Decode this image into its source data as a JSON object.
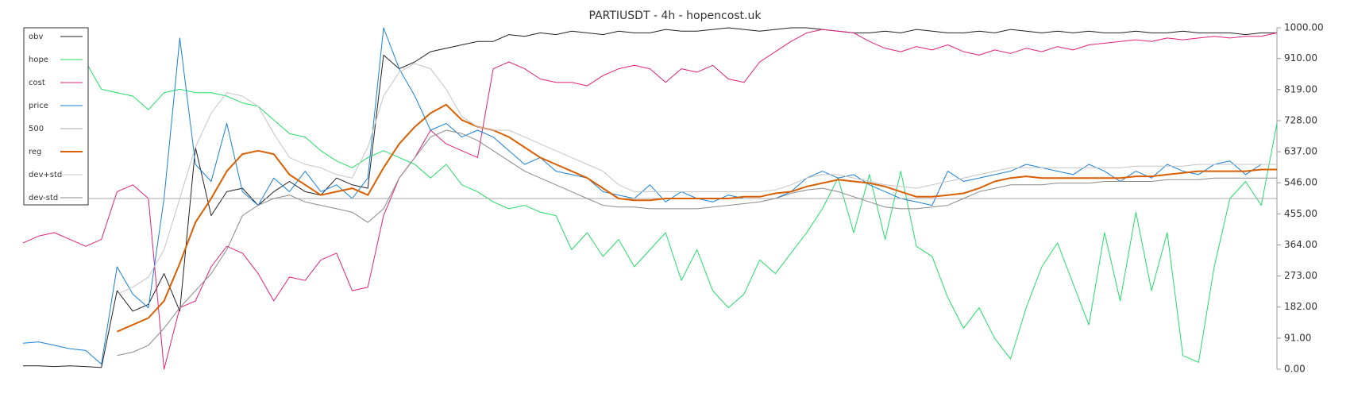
{
  "chart_data": {
    "type": "line",
    "title": "PARTIUSDT - 4h - hopencost.uk",
    "ylim": [
      0,
      1000
    ],
    "yticks": [
      {
        "value": 0,
        "label": "0.00"
      },
      {
        "value": 91,
        "label": "91.00"
      },
      {
        "value": 182,
        "label": "182.00"
      },
      {
        "value": 273,
        "label": "273.00"
      },
      {
        "value": 364,
        "label": "364.00"
      },
      {
        "value": 455,
        "label": "455.00"
      },
      {
        "value": 546,
        "label": "546.00"
      },
      {
        "value": 637,
        "label": "637.00"
      },
      {
        "value": 728,
        "label": "728.00"
      },
      {
        "value": 819,
        "label": "819.00"
      },
      {
        "value": 910,
        "label": "910.00"
      },
      {
        "value": 1000,
        "label": "1000.00"
      }
    ],
    "legend": "top-left",
    "series": [
      {
        "name": "obv",
        "color": "#222222",
        "values": [
          10,
          10,
          8,
          10,
          8,
          5,
          230,
          170,
          190,
          280,
          170,
          650,
          450,
          520,
          530,
          480,
          520,
          550,
          520,
          510,
          560,
          540,
          530,
          920,
          880,
          900,
          930,
          940,
          950,
          960,
          960,
          980,
          975,
          985,
          980,
          990,
          985,
          980,
          990,
          985,
          985,
          995,
          990,
          990,
          995,
          1000,
          995,
          990,
          995,
          1000,
          1000,
          995,
          990,
          985,
          985,
          990,
          985,
          995,
          990,
          985,
          985,
          990,
          985,
          995,
          990,
          985,
          990,
          985,
          990,
          985,
          985,
          990,
          985,
          985,
          990,
          985,
          985,
          985,
          980,
          985,
          985
        ]
      },
      {
        "name": "hope",
        "color": "#22dd66",
        "values": [
          null,
          null,
          null,
          null,
          900,
          820,
          810,
          800,
          760,
          810,
          820,
          810,
          810,
          800,
          780,
          770,
          730,
          690,
          680,
          640,
          610,
          590,
          620,
          640,
          620,
          600,
          560,
          600,
          540,
          520,
          490,
          470,
          480,
          460,
          450,
          350,
          400,
          330,
          380,
          300,
          350,
          400,
          260,
          350,
          230,
          180,
          220,
          320,
          280,
          340,
          400,
          470,
          560,
          400,
          570,
          380,
          580,
          360,
          330,
          210,
          120,
          180,
          90,
          30,
          180,
          300,
          370,
          250,
          130,
          400,
          200,
          460,
          230,
          400,
          40,
          20,
          300,
          500,
          550,
          480,
          720
        ]
      },
      {
        "name": "cost",
        "color": "#e0207a",
        "values": [
          370,
          390,
          400,
          380,
          360,
          380,
          520,
          540,
          500,
          0,
          180,
          200,
          300,
          360,
          340,
          280,
          200,
          270,
          260,
          320,
          340,
          230,
          240,
          450,
          560,
          620,
          700,
          660,
          640,
          620,
          880,
          900,
          880,
          850,
          840,
          840,
          830,
          860,
          880,
          890,
          880,
          840,
          880,
          870,
          890,
          850,
          840,
          900,
          930,
          960,
          985,
          995,
          990,
          985,
          960,
          940,
          930,
          945,
          935,
          950,
          930,
          920,
          935,
          925,
          940,
          930,
          945,
          935,
          950,
          955,
          960,
          965,
          960,
          970,
          965,
          970,
          975,
          970,
          975,
          975,
          985
        ]
      },
      {
        "name": "price",
        "color": "#1a7fd4",
        "values": [
          76,
          80,
          70,
          60,
          55,
          15,
          300,
          220,
          180,
          500,
          970,
          600,
          550,
          720,
          520,
          480,
          560,
          520,
          580,
          520,
          540,
          500,
          560,
          1000,
          880,
          800,
          700,
          720,
          680,
          700,
          680,
          640,
          600,
          620,
          580,
          570,
          560,
          520,
          510,
          500,
          540,
          490,
          520,
          500,
          490,
          510,
          500,
          500,
          500,
          520,
          560,
          580,
          560,
          570,
          540,
          520,
          500,
          490,
          480,
          580,
          550,
          560,
          570,
          580,
          600,
          590,
          580,
          570,
          600,
          580,
          550,
          580,
          560,
          600,
          580,
          570,
          600,
          610,
          570,
          600,
          600
        ]
      },
      {
        "name": "500",
        "color": "#aaaaaa",
        "values": [
          500,
          500,
          500,
          500,
          500,
          500,
          500,
          500,
          500,
          500,
          500,
          500,
          500,
          500,
          500,
          500,
          500,
          500,
          500,
          500,
          500,
          500,
          500,
          500,
          500,
          500,
          500,
          500,
          500,
          500,
          500,
          500,
          500,
          500,
          500,
          500,
          500,
          500,
          500,
          500,
          500,
          500,
          500,
          500,
          500,
          500,
          500,
          500,
          500,
          500,
          500,
          500,
          500,
          500,
          500,
          500,
          500,
          500,
          500,
          500,
          500,
          500,
          500,
          500,
          500,
          500,
          500,
          500,
          500,
          500,
          500,
          500,
          500,
          500,
          500,
          500,
          500,
          500,
          500,
          500,
          500
        ]
      },
      {
        "name": "reg",
        "color": "#d95f02",
        "width": 2,
        "values": [
          null,
          null,
          null,
          null,
          null,
          null,
          110,
          130,
          150,
          200,
          310,
          430,
          500,
          580,
          630,
          640,
          630,
          570,
          540,
          510,
          520,
          530,
          510,
          590,
          660,
          710,
          750,
          775,
          730,
          710,
          700,
          680,
          650,
          620,
          600,
          580,
          560,
          530,
          500,
          495,
          495,
          500,
          500,
          500,
          500,
          500,
          505,
          505,
          515,
          520,
          535,
          545,
          555,
          550,
          545,
          535,
          520,
          505,
          505,
          510,
          515,
          530,
          550,
          560,
          565,
          560,
          560,
          560,
          560,
          560,
          560,
          565,
          565,
          570,
          575,
          580,
          580,
          580,
          580,
          585,
          585
        ]
      },
      {
        "name": "dev+std",
        "color": "#c4c4c4",
        "values": [
          null,
          null,
          null,
          null,
          null,
          null,
          220,
          240,
          270,
          350,
          500,
          650,
          750,
          810,
          800,
          770,
          690,
          620,
          600,
          590,
          570,
          560,
          650,
          800,
          870,
          895,
          880,
          820,
          740,
          710,
          700,
          700,
          680,
          660,
          640,
          620,
          600,
          580,
          540,
          520,
          520,
          520,
          520,
          520,
          520,
          520,
          520,
          520,
          525,
          540,
          560,
          570,
          570,
          560,
          550,
          540,
          535,
          530,
          540,
          550,
          560,
          570,
          580,
          590,
          590,
          590,
          590,
          590,
          590,
          590,
          590,
          595,
          595,
          595,
          595,
          600,
          600,
          600,
          600,
          600,
          600
        ]
      },
      {
        "name": "dev-std",
        "color": "#8a8a8a",
        "values": [
          null,
          null,
          null,
          null,
          null,
          null,
          40,
          50,
          70,
          120,
          180,
          230,
          280,
          350,
          450,
          480,
          500,
          510,
          490,
          480,
          470,
          460,
          430,
          470,
          560,
          620,
          680,
          700,
          690,
          670,
          640,
          610,
          580,
          560,
          540,
          520,
          500,
          480,
          475,
          475,
          470,
          470,
          470,
          470,
          475,
          480,
          485,
          490,
          500,
          515,
          525,
          530,
          520,
          505,
          490,
          475,
          470,
          470,
          475,
          480,
          500,
          520,
          530,
          540,
          540,
          540,
          545,
          545,
          545,
          550,
          550,
          550,
          550,
          555,
          555,
          555,
          560,
          560,
          560,
          560,
          560
        ]
      }
    ]
  }
}
